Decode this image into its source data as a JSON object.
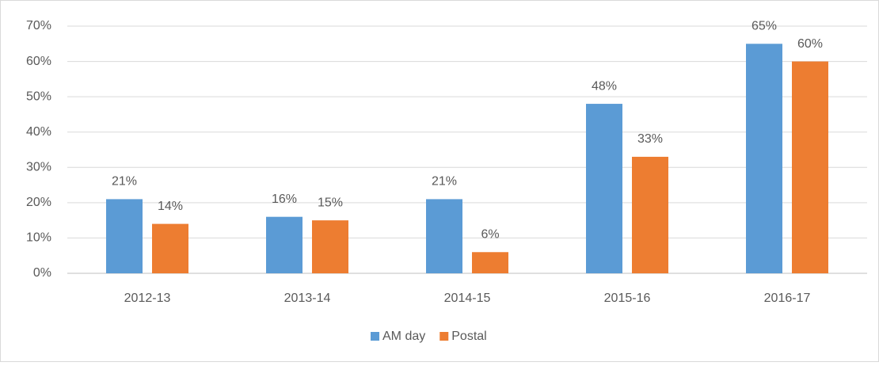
{
  "chart_data": {
    "type": "bar",
    "categories": [
      "2012-13",
      "2013-14",
      "2014-15",
      "2015-16",
      "2016-17"
    ],
    "series": [
      {
        "name": "AM day",
        "color": "#5b9bd5",
        "values": [
          21,
          16,
          21,
          48,
          65
        ],
        "value_labels": [
          "21%",
          "16%",
          "21%",
          "48%",
          "65%"
        ]
      },
      {
        "name": "Postal",
        "color": "#ed7d31",
        "values": [
          14,
          15,
          6,
          33,
          60
        ],
        "value_labels": [
          "14%",
          "15%",
          "6%",
          "33%",
          "60%"
        ]
      }
    ],
    "ylim": [
      0,
      70
    ],
    "yticks": [
      {
        "value": 0,
        "label": "0%"
      },
      {
        "value": 10,
        "label": "10%"
      },
      {
        "value": 20,
        "label": "20%"
      },
      {
        "value": 30,
        "label": "30%"
      },
      {
        "value": 40,
        "label": "40%"
      },
      {
        "value": 50,
        "label": "50%"
      },
      {
        "value": 60,
        "label": "60%"
      },
      {
        "value": 70,
        "label": "70%"
      }
    ],
    "grid": true,
    "legend": "bottom"
  }
}
